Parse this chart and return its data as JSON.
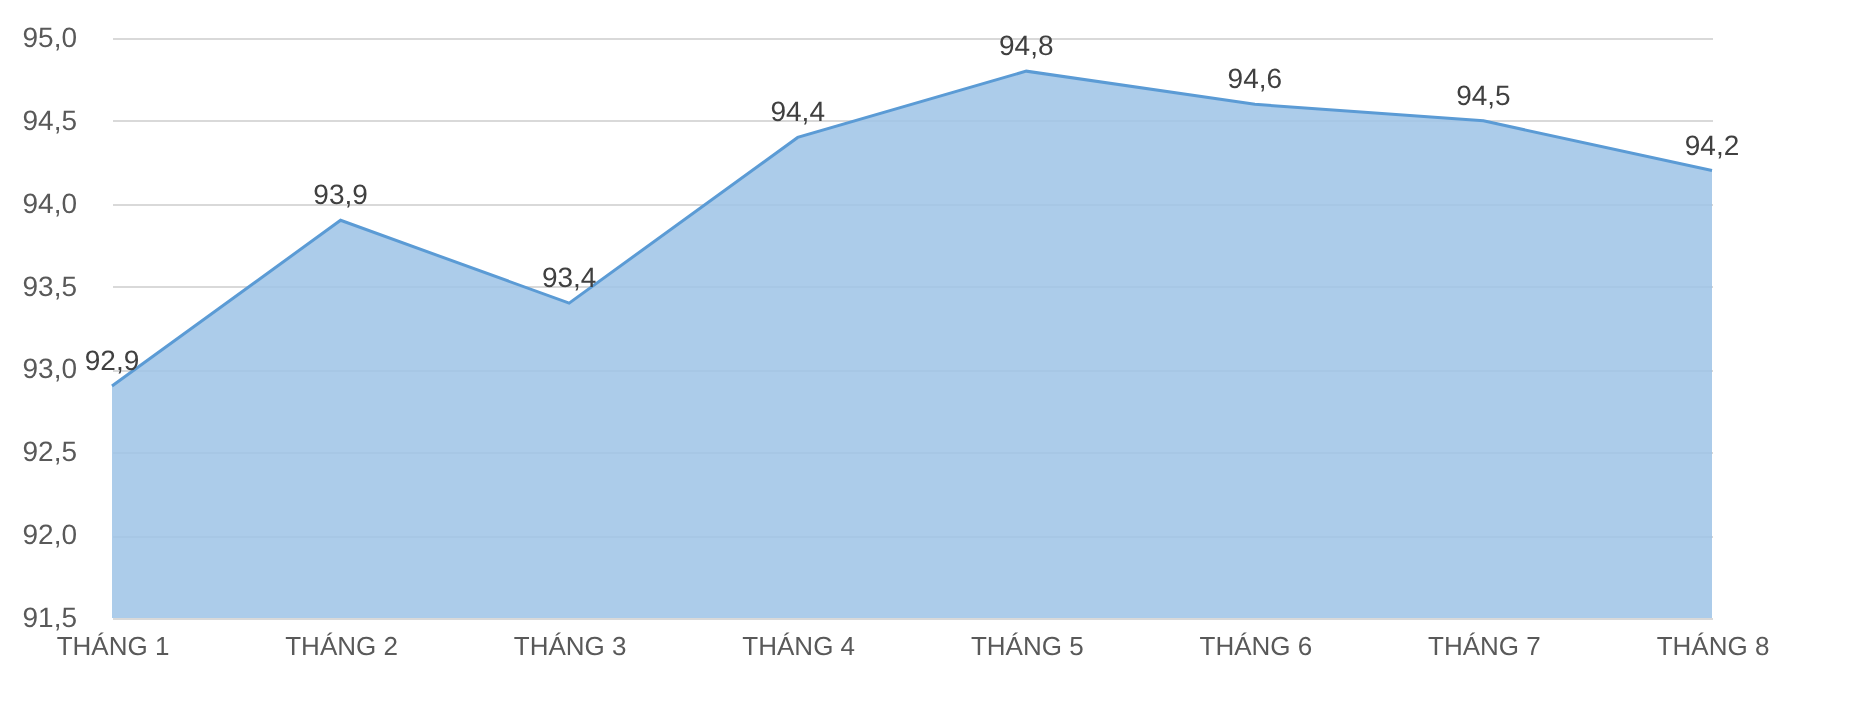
{
  "chart_data": {
    "type": "area",
    "categories": [
      "THÁNG 1",
      "THÁNG 2",
      "THÁNG 3",
      "THÁNG 4",
      "THÁNG 5",
      "THÁNG 6",
      "THÁNG 7",
      "THÁNG 8"
    ],
    "series": [
      {
        "color": "#9dc3e6",
        "values": [
          92.9,
          93.9,
          93.4,
          94.4,
          94.8,
          94.6,
          94.5,
          94.2
        ],
        "value_labels": [
          "92,9",
          "93,9",
          "93,4",
          "94,4",
          "94,8",
          "94,6",
          "94,5",
          "94,2"
        ]
      }
    ],
    "ylim": [
      91.5,
      95.0
    ],
    "yticks": [
      {
        "value": 91.5,
        "label": "91,5"
      },
      {
        "value": 92.0,
        "label": "92,0"
      },
      {
        "value": 92.5,
        "label": "92,5"
      },
      {
        "value": 93.0,
        "label": "93,0"
      },
      {
        "value": 93.5,
        "label": "93,5"
      },
      {
        "value": 94.0,
        "label": "94,0"
      },
      {
        "value": 94.5,
        "label": "94,5"
      },
      {
        "value": 95.0,
        "label": "95,0"
      }
    ],
    "grid": "y"
  }
}
